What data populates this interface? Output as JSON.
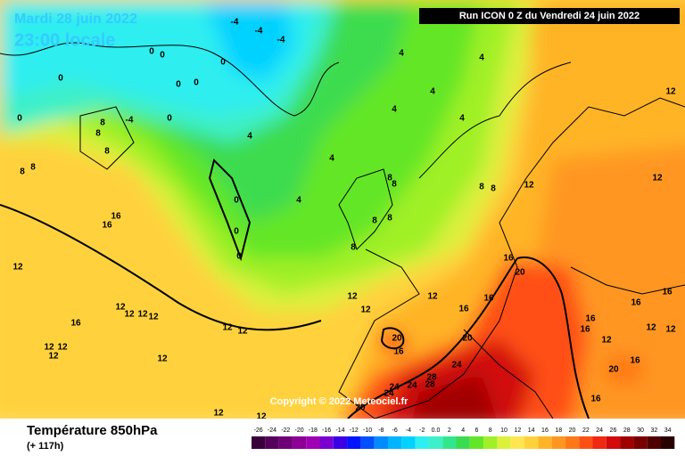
{
  "header": {
    "date": "Mardi 28 juin 2022",
    "time": "23:00 locale",
    "run": "Run ICON 0 Z du Vendredi 24 juin 2022",
    "copyright": "Copyright © 2022 Meteociel.fr"
  },
  "footer": {
    "title": "Température 850hPa",
    "lead": "(+ 117h)"
  },
  "legend": {
    "items": [
      {
        "label": "-26",
        "color": "#3a003a"
      },
      {
        "label": "-24",
        "color": "#55005a"
      },
      {
        "label": "-22",
        "color": "#700078"
      },
      {
        "label": "-20",
        "color": "#8c0096"
      },
      {
        "label": "-18",
        "color": "#a000b4"
      },
      {
        "label": "-16",
        "color": "#7a00d2"
      },
      {
        "label": "-14",
        "color": "#3c00e6"
      },
      {
        "label": "-12",
        "color": "#0014ff"
      },
      {
        "label": "-10",
        "color": "#0050ff"
      },
      {
        "label": "-8",
        "color": "#008cff"
      },
      {
        "label": "-6",
        "color": "#00b4ff"
      },
      {
        "label": "-4",
        "color": "#00d2ff"
      },
      {
        "label": "-2",
        "color": "#2deef0"
      },
      {
        "label": "0.0",
        "color": "#3cf0c8"
      },
      {
        "label": "2",
        "color": "#32e68c"
      },
      {
        "label": "4",
        "color": "#3cdc50"
      },
      {
        "label": "6",
        "color": "#64e628"
      },
      {
        "label": "8",
        "color": "#a0f028"
      },
      {
        "label": "10",
        "color": "#dcf03c"
      },
      {
        "label": "12",
        "color": "#ffe650"
      },
      {
        "label": "14",
        "color": "#ffd23c"
      },
      {
        "label": "16",
        "color": "#ffb428"
      },
      {
        "label": "18",
        "color": "#ff9620"
      },
      {
        "label": "20",
        "color": "#ff7818"
      },
      {
        "label": "22",
        "color": "#ff5014"
      },
      {
        "label": "24",
        "color": "#f02814"
      },
      {
        "label": "26",
        "color": "#d20a0a"
      },
      {
        "label": "28",
        "color": "#a00000"
      },
      {
        "label": "30",
        "color": "#780000"
      },
      {
        "label": "32",
        "color": "#500000"
      },
      {
        "label": "34",
        "color": "#280000"
      }
    ]
  },
  "contour_labels": [
    "-4",
    "-4",
    "-4",
    "0",
    "0",
    "0",
    "0",
    "0",
    "0",
    "0",
    "-4",
    "0",
    "8",
    "8",
    "8",
    "8",
    "8",
    "16",
    "16",
    "12",
    "12",
    "12",
    "12",
    "12",
    "16",
    "12",
    "12",
    "12",
    "12",
    "12",
    "12",
    "12",
    "12",
    "4",
    "4",
    "4",
    "0",
    "0",
    "0",
    "4",
    "4",
    "4",
    "4",
    "4",
    "8",
    "8",
    "8",
    "8",
    "8",
    "8",
    "8",
    "12",
    "12",
    "12",
    "12",
    "12",
    "12",
    "16",
    "16",
    "16",
    "20",
    "20",
    "16",
    "20",
    "24",
    "24",
    "24",
    "28",
    "28",
    "24",
    "16",
    "16",
    "16",
    "16",
    "12",
    "12",
    "12",
    "20",
    "16",
    "16",
    "20"
  ]
}
